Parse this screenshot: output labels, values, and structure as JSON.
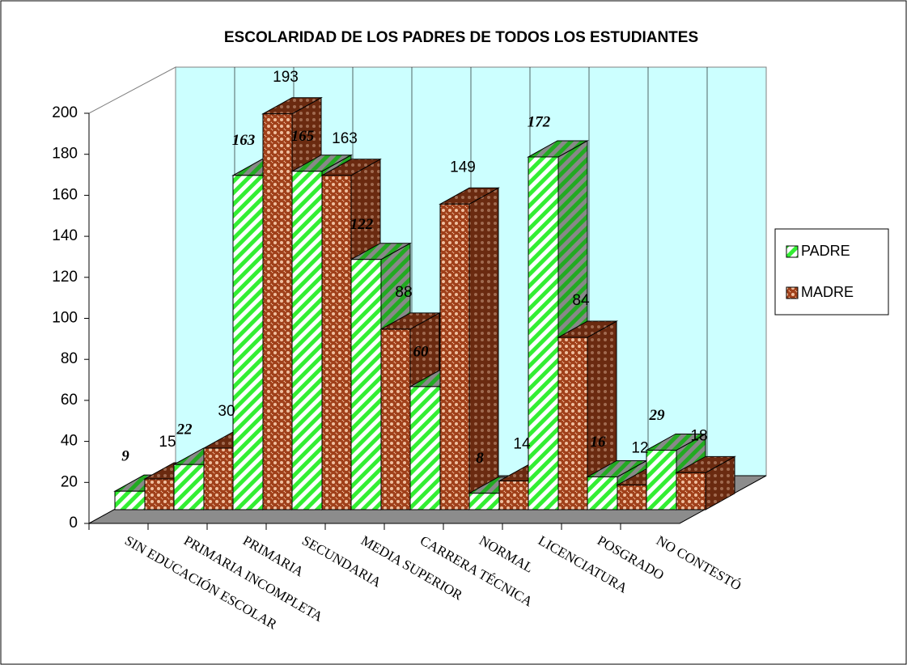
{
  "chart_data": {
    "type": "bar3d",
    "title": "ESCOLARIDAD DE LOS PADRES DE TODOS LOS ESTUDIANTES",
    "categories": [
      "SIN EDUCACIÓN ESCOLAR",
      "PRIMARIA INCOMPLETA",
      "PRIMARIA",
      "SECUNDARIA",
      "MEDIA SUPERIOR",
      "CARRERA TÉCNICA",
      "NORMAL",
      "LICENCIATURA",
      "POSGRADO",
      "NO CONTESTÓ"
    ],
    "series": [
      {
        "name": "PADRE",
        "color": "#33ee33",
        "values": [
          9,
          22,
          163,
          165,
          122,
          60,
          8,
          172,
          16,
          29
        ]
      },
      {
        "name": "MADRE",
        "color": "#a0401a",
        "values": [
          15,
          30,
          193,
          163,
          88,
          149,
          14,
          84,
          12,
          18
        ]
      }
    ],
    "ylim": [
      0,
      200
    ],
    "yticks": [
      0,
      20,
      40,
      60,
      80,
      100,
      120,
      140,
      160,
      180,
      200
    ],
    "legend": "right"
  }
}
